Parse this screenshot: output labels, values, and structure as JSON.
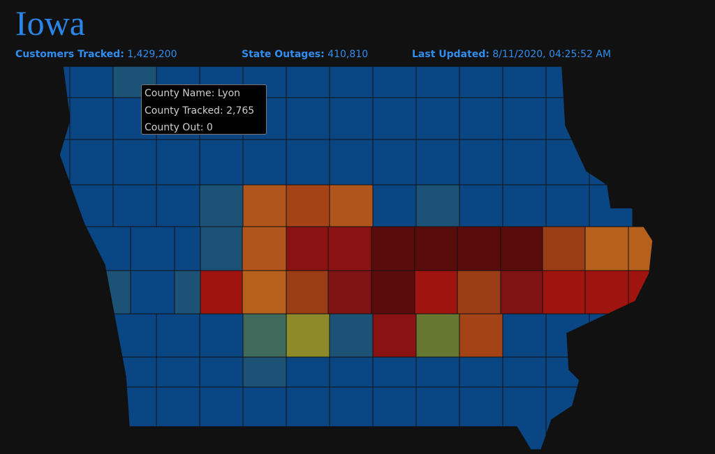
{
  "header": {
    "title": "Iowa"
  },
  "stats": [
    {
      "label": "Customers Tracked:",
      "value": "1,429,200"
    },
    {
      "label": "State Outages:",
      "value": "410,810"
    },
    {
      "label": "Last Updated:",
      "value": "8/11/2020, 04:25:52 AM"
    }
  ],
  "tooltip": [
    {
      "label": "County Name:",
      "value": "Lyon"
    },
    {
      "label": "County Tracked:",
      "value": "2,765"
    },
    {
      "label": "County Out:",
      "value": "0"
    }
  ]
}
